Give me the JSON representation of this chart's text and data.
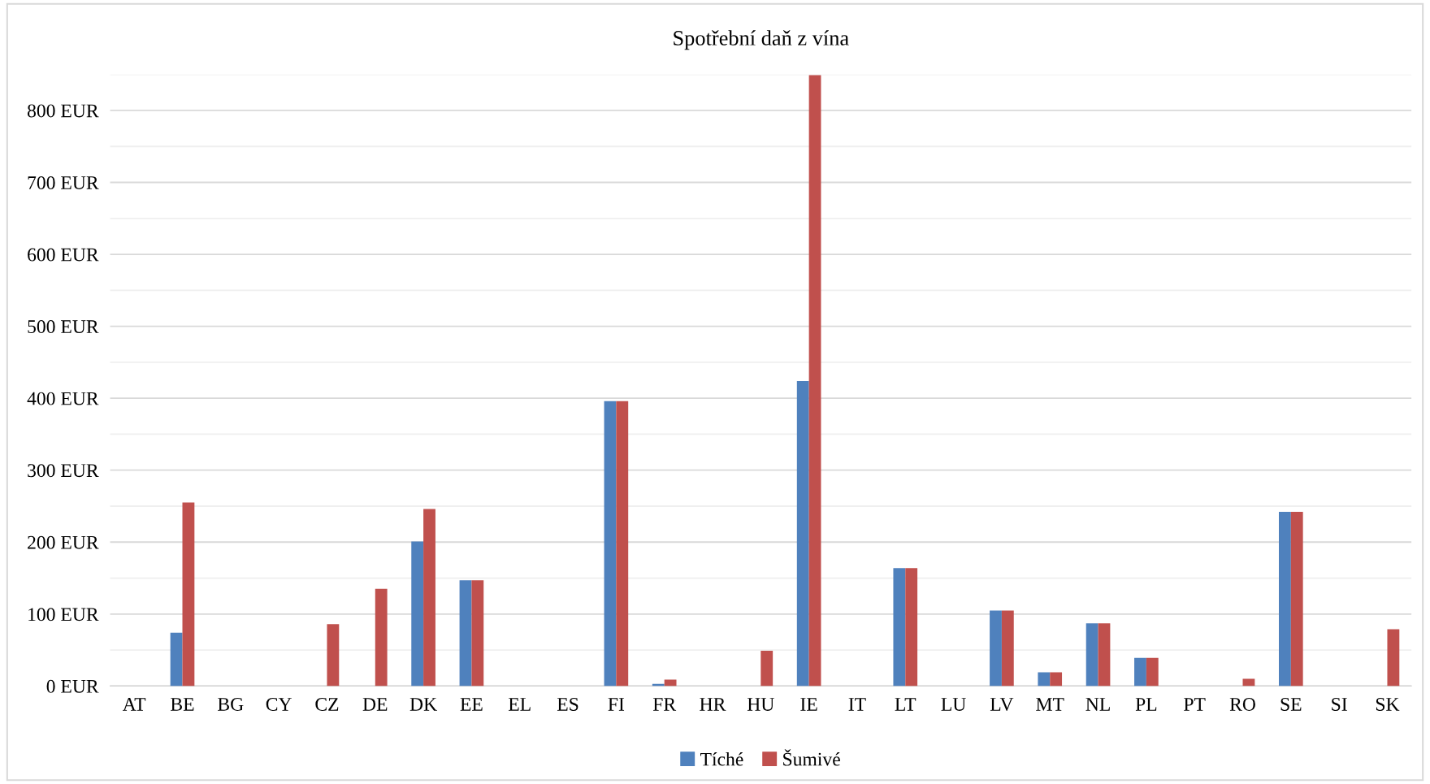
{
  "chart_data": {
    "type": "bar",
    "title": "Spotřební daň z vína",
    "categories": [
      "AT",
      "BE",
      "BG",
      "CY",
      "CZ",
      "DE",
      "DK",
      "EE",
      "EL",
      "ES",
      "FI",
      "FR",
      "HR",
      "HU",
      "IE",
      "IT",
      "LT",
      "LU",
      "LV",
      "MT",
      "NL",
      "PL",
      "PT",
      "RO",
      "SE",
      "SI",
      "SK"
    ],
    "series": [
      {
        "name": "Tíché",
        "color": "#4f81bd",
        "values": [
          0,
          74,
          0,
          0,
          0,
          0,
          201,
          147,
          0,
          0,
          396,
          3,
          0,
          0,
          424,
          0,
          164,
          0,
          105,
          19,
          87,
          39,
          0,
          0,
          242,
          0,
          0
        ]
      },
      {
        "name": "Šumivé",
        "color": "#c0504d",
        "values": [
          0,
          255,
          0,
          0,
          86,
          135,
          246,
          147,
          0,
          0,
          396,
          9,
          0,
          49,
          849,
          0,
          164,
          0,
          105,
          19,
          87,
          39,
          0,
          10,
          242,
          0,
          79
        ]
      }
    ],
    "ylim": [
      0,
      850
    ],
    "yticks": [
      {
        "value": 0,
        "label": "0 EUR"
      },
      {
        "value": 50,
        "label": null
      },
      {
        "value": 100,
        "label": "100 EUR"
      },
      {
        "value": 150,
        "label": null
      },
      {
        "value": 200,
        "label": "200 EUR"
      },
      {
        "value": 250,
        "label": null
      },
      {
        "value": 300,
        "label": "300 EUR"
      },
      {
        "value": 350,
        "label": null
      },
      {
        "value": 400,
        "label": "400 EUR"
      },
      {
        "value": 450,
        "label": null
      },
      {
        "value": 500,
        "label": "500 EUR"
      },
      {
        "value": 550,
        "label": null
      },
      {
        "value": 600,
        "label": "600 EUR"
      },
      {
        "value": 650,
        "label": null
      },
      {
        "value": 700,
        "label": "700 EUR"
      },
      {
        "value": 750,
        "label": null
      },
      {
        "value": 800,
        "label": "800 EUR"
      },
      {
        "value": 850,
        "label": null
      }
    ],
    "grid": "y",
    "legend": "bottom"
  }
}
